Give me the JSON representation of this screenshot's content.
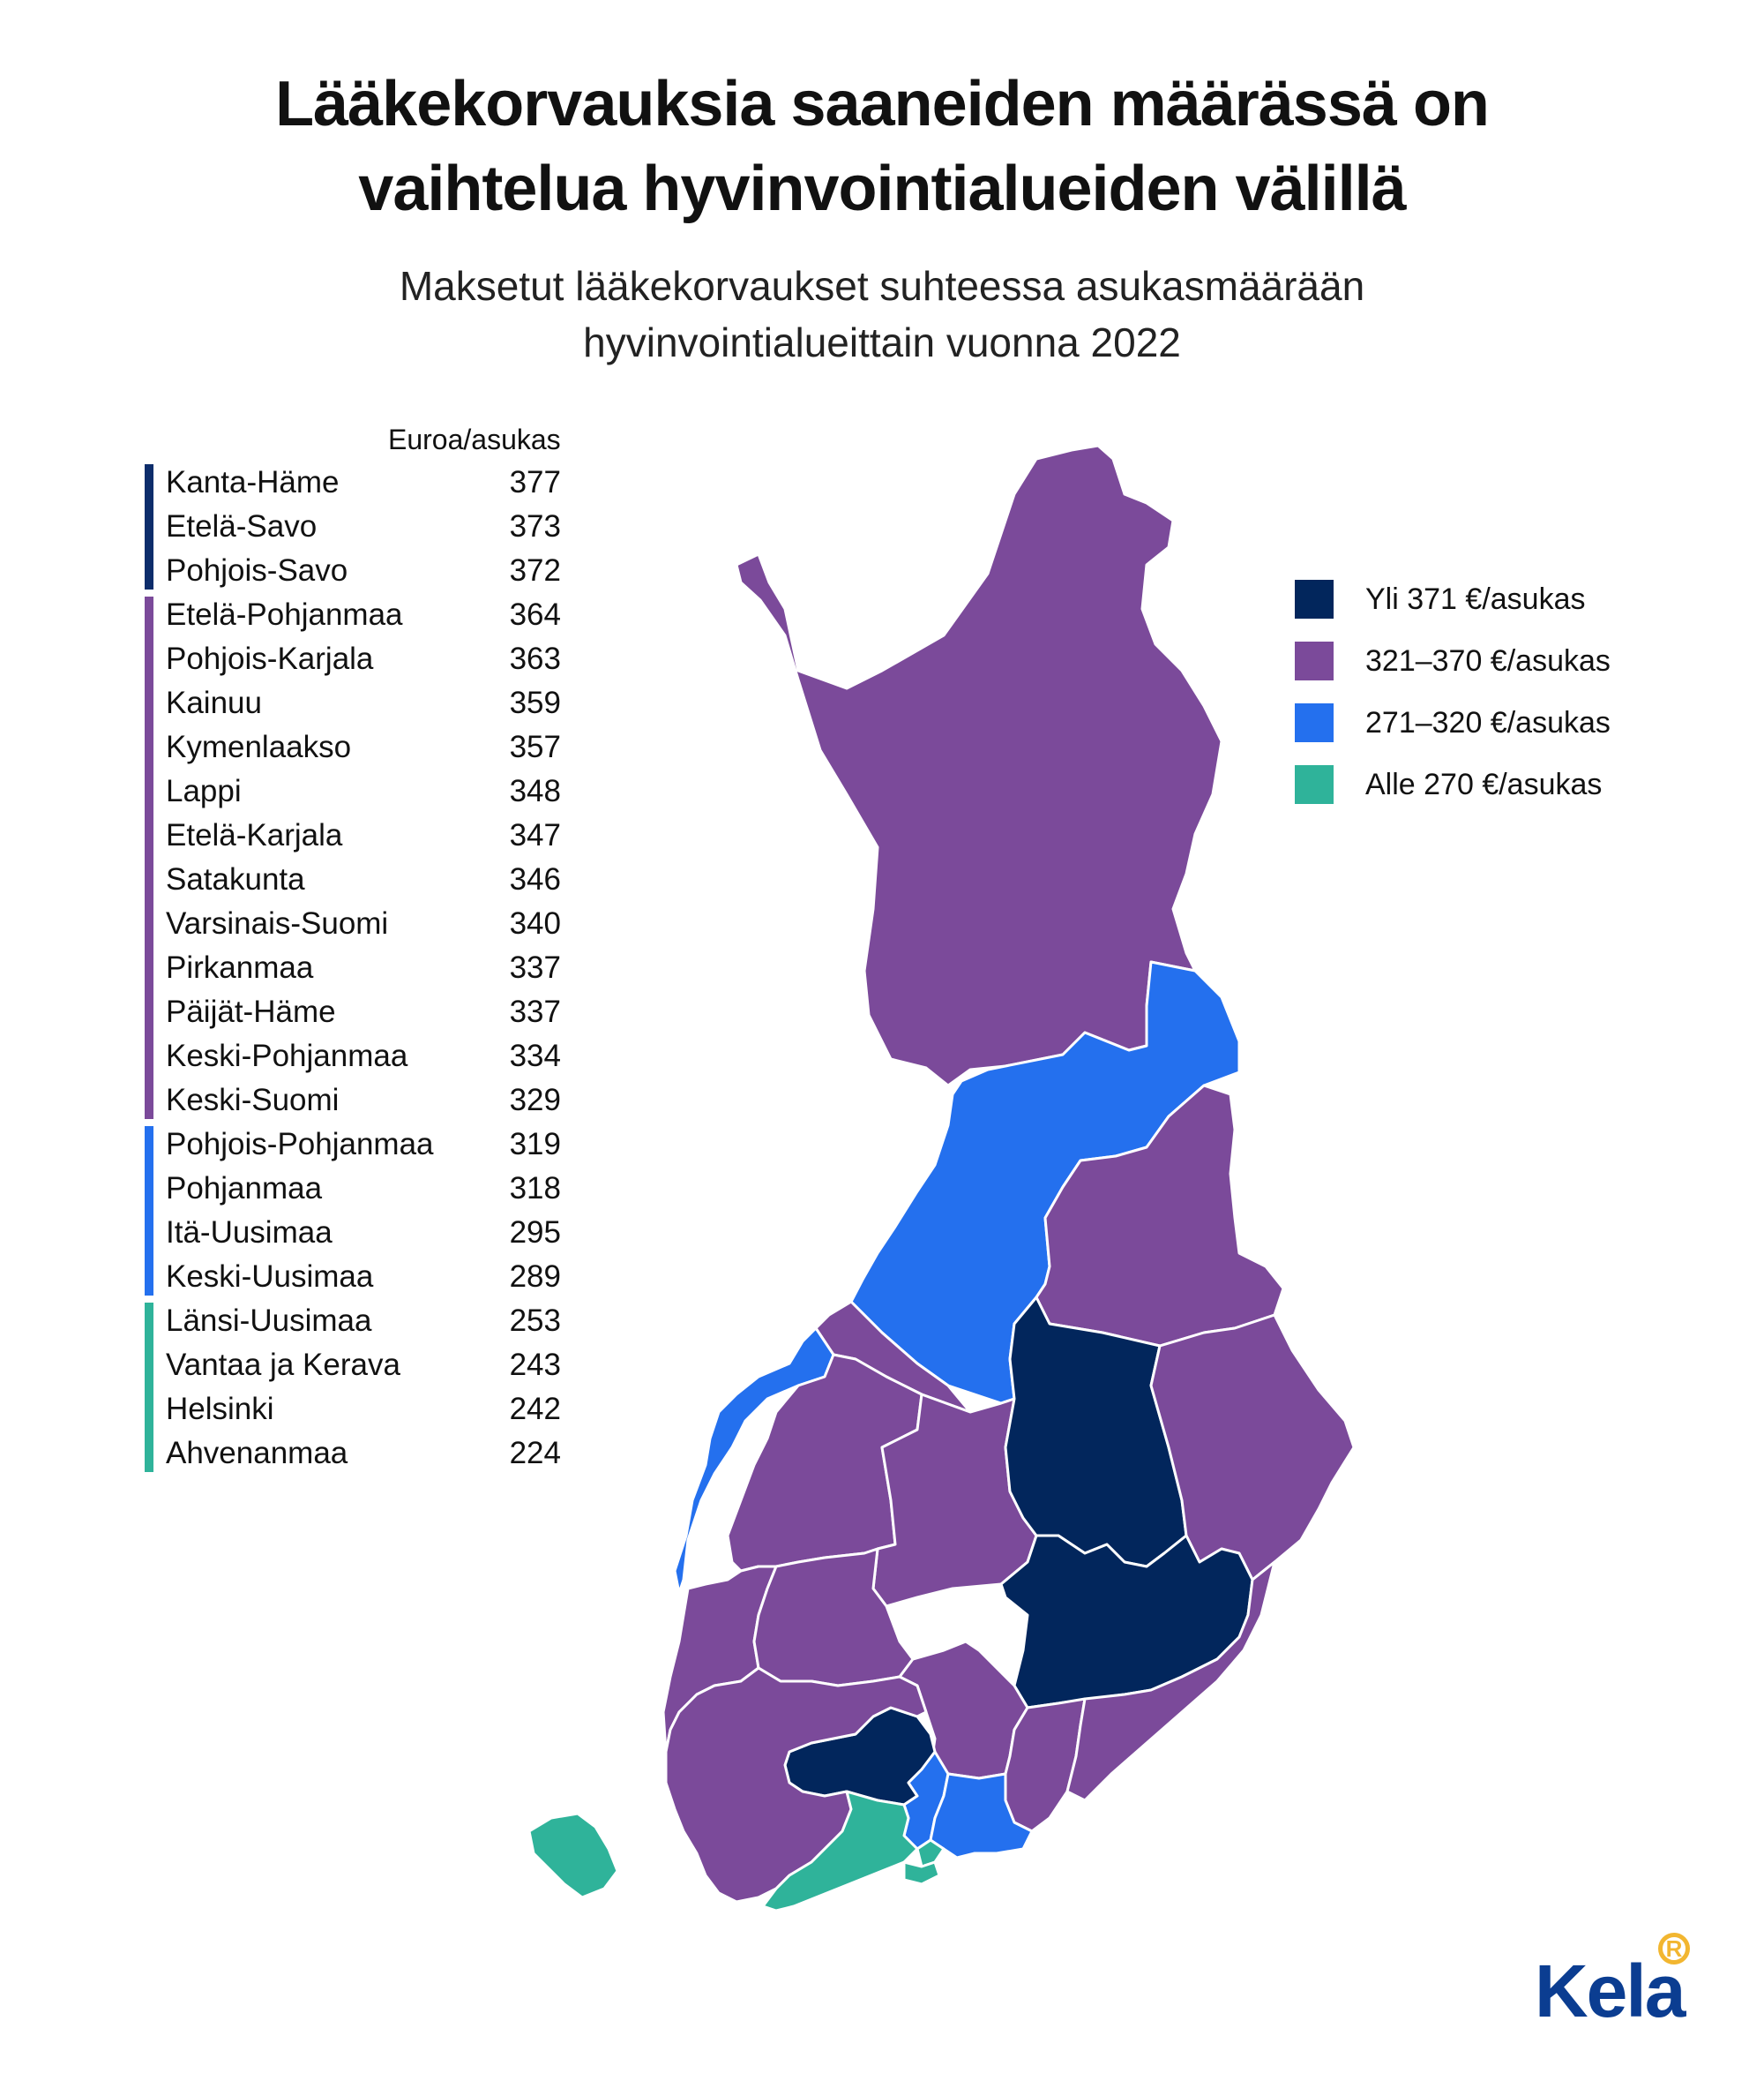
{
  "title": {
    "line1": "Lääkekorvauksia saaneiden määrässä on",
    "line2": "vaihtelua hyvinvointialueiden välillä"
  },
  "subtitle": {
    "line1": "Maksetut lääkekorvaukset suhteessa asukasmäärään",
    "line2": "hyvinvointialueittain vuonna 2022"
  },
  "unit_header": "Euroa/asukas",
  "ranking_groups": [
    {
      "color": "#0d2d6b",
      "items": [
        {
          "name": "Kanta-Häme",
          "value": "377"
        },
        {
          "name": "Etelä-Savo",
          "value": "373"
        },
        {
          "name": "Pohjois-Savo",
          "value": "372"
        }
      ]
    },
    {
      "color": "#7b4a9a",
      "items": [
        {
          "name": "Etelä-Pohjanmaa",
          "value": "364"
        },
        {
          "name": "Pohjois-Karjala",
          "value": "363"
        },
        {
          "name": "Kainuu",
          "value": "359"
        },
        {
          "name": "Kymenlaakso",
          "value": "357"
        },
        {
          "name": "Lappi",
          "value": "348"
        },
        {
          "name": "Etelä-Karjala",
          "value": "347"
        },
        {
          "name": "Satakunta",
          "value": "346"
        },
        {
          "name": "Varsinais-Suomi",
          "value": "340"
        },
        {
          "name": "Pirkanmaa",
          "value": "337"
        },
        {
          "name": "Päijät-Häme",
          "value": "337"
        },
        {
          "name": "Keski-Pohjanmaa",
          "value": "334"
        },
        {
          "name": "Keski-Suomi",
          "value": "329"
        }
      ]
    },
    {
      "color": "#2470ee",
      "items": [
        {
          "name": "Pohjois-Pohjanmaa",
          "value": "319"
        },
        {
          "name": "Pohjanmaa",
          "value": "318"
        },
        {
          "name": "Itä-Uusimaa",
          "value": "295"
        },
        {
          "name": "Keski-Uusimaa",
          "value": "289"
        }
      ]
    },
    {
      "color": "#2fb39a",
      "items": [
        {
          "name": "Länsi-Uusimaa",
          "value": "253"
        },
        {
          "name": "Vantaa ja Kerava",
          "value": "243"
        },
        {
          "name": "Helsinki",
          "value": "242"
        },
        {
          "name": "Ahvenanmaa",
          "value": "224"
        }
      ]
    }
  ],
  "legend": [
    {
      "label": "Yli 371 €/asukas",
      "color": "#02265c"
    },
    {
      "label": "321–370 €/asukas",
      "color": "#7b4a9a"
    },
    {
      "label": "271–320 €/asukas",
      "color": "#2470ee"
    },
    {
      "label": "Alle 270 €/asukas",
      "color": "#2fb39a"
    }
  ],
  "map_regions": [
    {
      "id": "lappi",
      "category": "321–370 €/asukas"
    },
    {
      "id": "pohjois-pohjanmaa",
      "category": "271–320 €/asukas"
    },
    {
      "id": "kainuu",
      "category": "321–370 €/asukas"
    },
    {
      "id": "keski-pohjanmaa",
      "category": "321–370 €/asukas"
    },
    {
      "id": "pohjanmaa",
      "category": "271–320 €/asukas"
    },
    {
      "id": "etela-pohjanmaa",
      "category": "321–370 €/asukas"
    },
    {
      "id": "keski-suomi",
      "category": "321–370 €/asukas"
    },
    {
      "id": "pohjois-savo",
      "category": "Yli 371 €/asukas"
    },
    {
      "id": "pohjois-karjala",
      "category": "321–370 €/asukas"
    },
    {
      "id": "satakunta",
      "category": "321–370 €/asukas"
    },
    {
      "id": "pirkanmaa",
      "category": "321–370 €/asukas"
    },
    {
      "id": "etela-savo",
      "category": "Yli 371 €/asukas"
    },
    {
      "id": "paijat-hame",
      "category": "321–370 €/asukas"
    },
    {
      "id": "kanta-hame",
      "category": "Yli 371 €/asukas"
    },
    {
      "id": "varsinais-suomi",
      "category": "321–370 €/asukas"
    },
    {
      "id": "kymenlaakso",
      "category": "321–370 €/asukas"
    },
    {
      "id": "etela-karjala",
      "category": "321–370 €/asukas"
    },
    {
      "id": "keski-uusimaa",
      "category": "271–320 €/asukas"
    },
    {
      "id": "ita-uusimaa",
      "category": "271–320 €/asukas"
    },
    {
      "id": "lansi-uusimaa",
      "category": "Alle 270 €/asukas"
    },
    {
      "id": "vantaa-kerava",
      "category": "Alle 270 €/asukas"
    },
    {
      "id": "helsinki",
      "category": "Alle 270 €/asukas"
    },
    {
      "id": "ahvenanmaa",
      "category": "Alle 270 €/asukas"
    }
  ],
  "logo": {
    "text": "Kela",
    "badge": "R"
  }
}
